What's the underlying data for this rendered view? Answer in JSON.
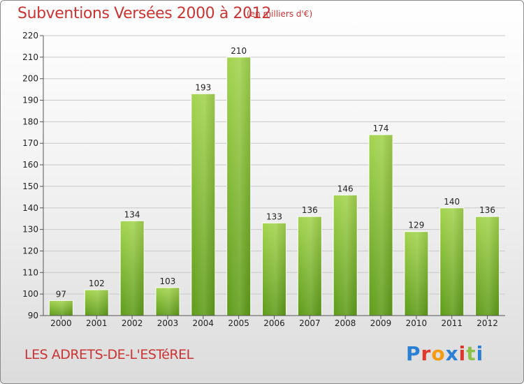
{
  "header": {
    "title": "Subventions Versées 2000 à 2012",
    "subtitle": "(en milliers d'€)"
  },
  "footer": {
    "commune": "LES ADRETS-DE-L'ESTéREL",
    "logo_text": "Proxiti"
  },
  "colors": {
    "title": "#cc3333",
    "bar_light": "#a3d44f",
    "bar_dark": "#5f9c1a",
    "grid": "#c8c8c8",
    "logo_letters": [
      "#2b7fd4",
      "#e0362c",
      "#f39c12",
      "#2b7fd4",
      "#e0362c",
      "#8bc34a",
      "#2b7fd4"
    ]
  },
  "chart_data": {
    "type": "bar",
    "title": "Subventions Versées 2000 à 2012",
    "subtitle": "(en milliers d'€)",
    "xlabel": "",
    "ylabel": "",
    "categories": [
      "2000",
      "2001",
      "2002",
      "2003",
      "2004",
      "2005",
      "2006",
      "2007",
      "2008",
      "2009",
      "2010",
      "2011",
      "2012"
    ],
    "values": [
      97,
      102,
      134,
      103,
      193,
      210,
      133,
      136,
      146,
      174,
      129,
      140,
      136
    ],
    "ylim": [
      90,
      220
    ],
    "yticks": [
      90,
      100,
      110,
      120,
      130,
      140,
      150,
      160,
      170,
      180,
      190,
      200,
      210,
      220
    ],
    "grid": true,
    "legend": "none"
  }
}
